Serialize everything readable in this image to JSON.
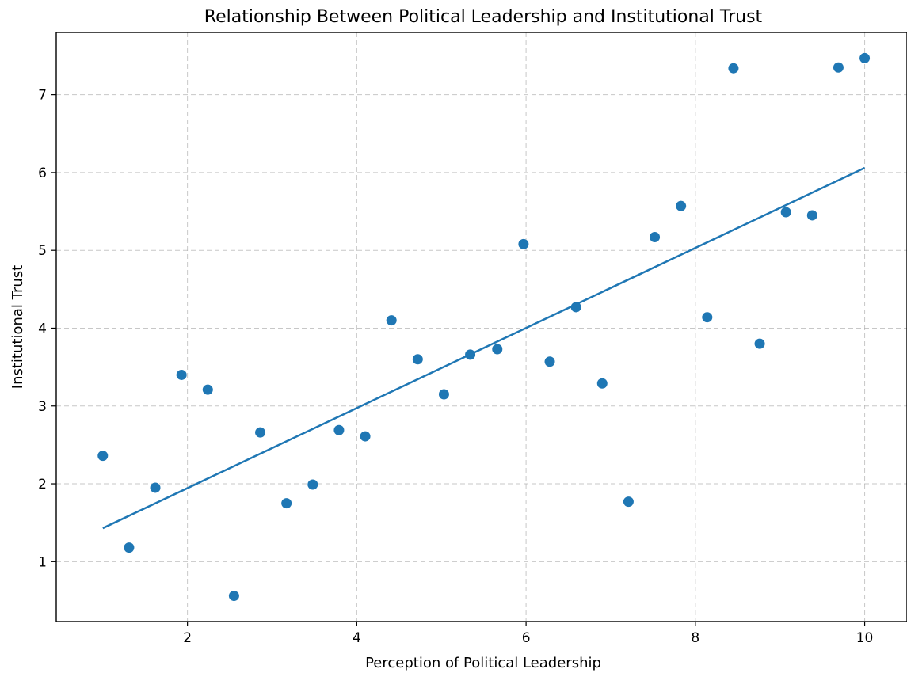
{
  "chart_data": {
    "type": "scatter",
    "title": "Relationship Between Political Leadership and Institutional Trust",
    "xlabel": "Perception of Political Leadership",
    "ylabel": "Institutional Trust",
    "xlim": [
      0.45,
      10.5
    ],
    "ylim": [
      0.23,
      7.8
    ],
    "xticks": [
      2,
      4,
      6,
      8,
      10
    ],
    "yticks": [
      1,
      2,
      3,
      4,
      5,
      6,
      7
    ],
    "grid": true,
    "point_color": "#1f77b4",
    "line_color": "#1f77b4",
    "series": [
      {
        "kind": "scatter",
        "x": [
          1.0,
          1.31,
          1.62,
          1.93,
          2.24,
          2.55,
          2.86,
          3.17,
          3.48,
          3.79,
          4.1,
          4.41,
          4.72,
          5.03,
          5.34,
          5.66,
          5.97,
          6.28,
          6.59,
          6.9,
          7.21,
          7.52,
          7.83,
          8.14,
          8.45,
          8.76,
          9.07,
          9.38,
          9.69,
          10.0
        ],
        "y": [
          2.36,
          1.18,
          1.95,
          3.4,
          3.21,
          0.56,
          2.66,
          1.75,
          1.99,
          2.69,
          2.61,
          4.1,
          3.6,
          3.15,
          3.66,
          3.73,
          5.08,
          3.57,
          4.27,
          3.29,
          1.77,
          5.17,
          5.57,
          4.14,
          7.34,
          3.8,
          5.49,
          5.45,
          7.35,
          7.47
        ]
      },
      {
        "kind": "line",
        "x": [
          1.0,
          10.0
        ],
        "y": [
          1.43,
          6.06
        ]
      }
    ]
  }
}
